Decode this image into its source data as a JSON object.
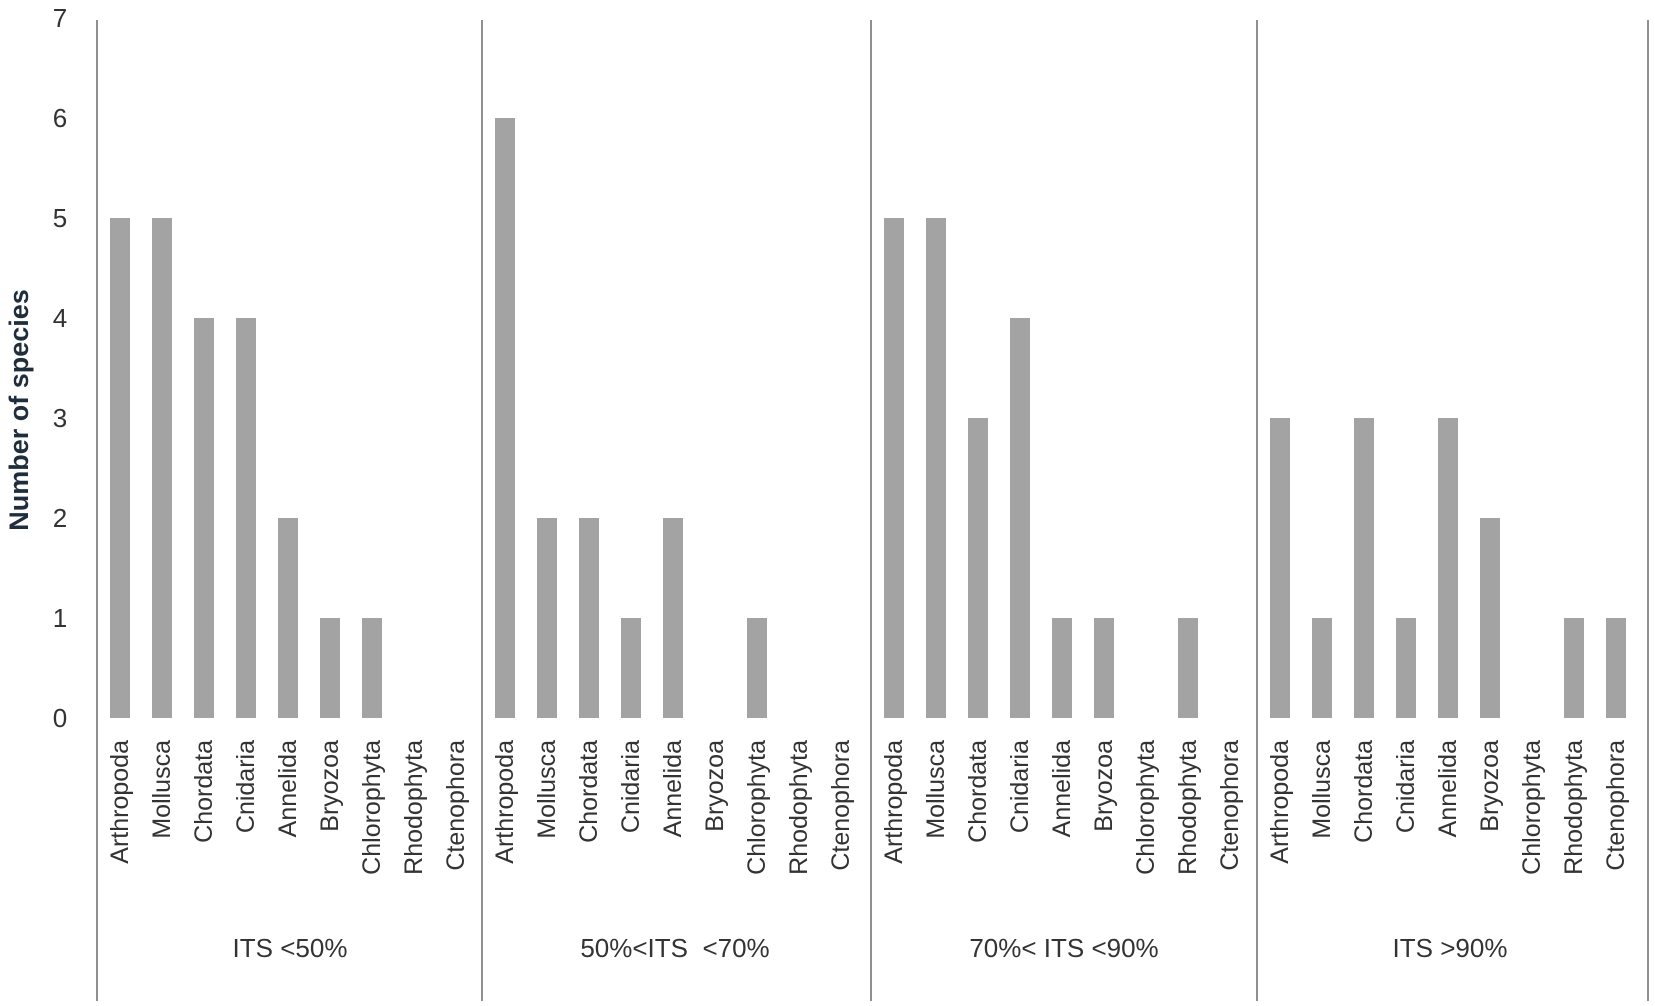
{
  "chart_data": {
    "type": "bar",
    "ylabel": "Number of species",
    "ylim": [
      0,
      7
    ],
    "yticks": [
      0,
      1,
      2,
      3,
      4,
      5,
      6,
      7
    ],
    "grid": false,
    "categories": [
      "Arthropoda",
      "Mollusca",
      "Chordata",
      "Cnidaria",
      "Annelida",
      "Bryozoa",
      "Chlorophyta",
      "Rhodophyta",
      "Ctenophora"
    ],
    "groups": [
      {
        "label": "ITS <50%",
        "values": [
          5,
          5,
          4,
          4,
          2,
          1,
          1,
          0,
          0
        ]
      },
      {
        "label": "50%<ITS  <70%",
        "values": [
          6,
          2,
          2,
          1,
          2,
          0,
          1,
          0,
          0
        ]
      },
      {
        "label": "70%< ITS <90%",
        "values": [
          5,
          5,
          3,
          4,
          1,
          1,
          0,
          1,
          0
        ]
      },
      {
        "label": "ITS >90%",
        "values": [
          3,
          1,
          3,
          1,
          3,
          2,
          0,
          1,
          1
        ]
      }
    ],
    "colors": {
      "bar": "#a3a3a3",
      "axis": "#6b6b6b",
      "text": "#333333"
    }
  }
}
